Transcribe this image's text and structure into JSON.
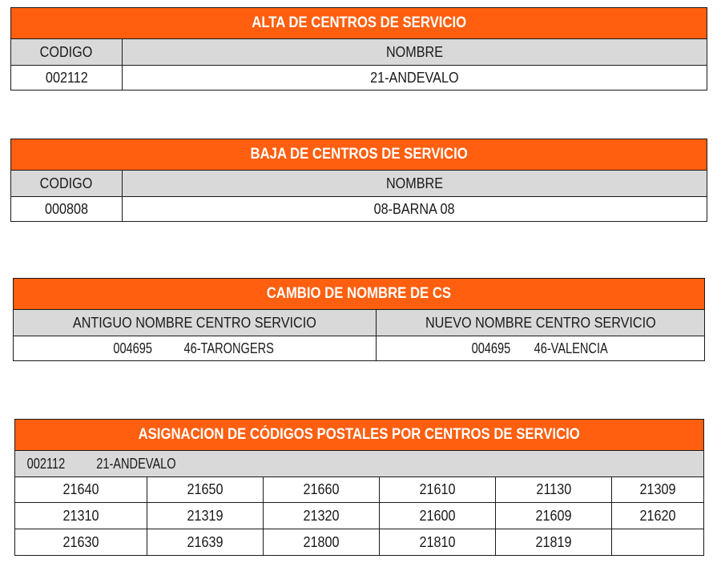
{
  "alta": {
    "title": "ALTA DE CENTROS DE SERVICIO",
    "col_codigo": "CODIGO",
    "col_nombre": "NOMBRE",
    "codigo": "002112",
    "nombre": "21-ANDEVALO"
  },
  "baja": {
    "title": "BAJA DE CENTROS DE SERVICIO",
    "col_codigo": "CODIGO",
    "col_nombre": "NOMBRE",
    "codigo": "000808",
    "nombre": "08-BARNA 08"
  },
  "cambio": {
    "title": "CAMBIO DE NOMBRE DE CS",
    "col_antiguo": "ANTIGUO NOMBRE CENTRO SERVICIO",
    "col_nuevo": "NUEVO NOMBRE CENTRO SERVICIO",
    "antiguo_codigo": "004695",
    "antiguo_nombre": "46-TARONGERS",
    "nuevo_codigo": "004695",
    "nuevo_nombre": "46-VALENCIA"
  },
  "asignacion": {
    "title": "ASIGNACION DE CÓDIGOS POSTALES POR CENTROS DE SERVICIO",
    "centro_codigo": "002112",
    "centro_nombre": "21-ANDEVALO",
    "rows": [
      [
        "21640",
        "21650",
        "21660",
        "21610",
        "21130",
        "21309"
      ],
      [
        "21310",
        "21319",
        "21320",
        "21600",
        "21609",
        "21620"
      ],
      [
        "21630",
        "21639",
        "21800",
        "21810",
        "21819",
        ""
      ]
    ]
  }
}
